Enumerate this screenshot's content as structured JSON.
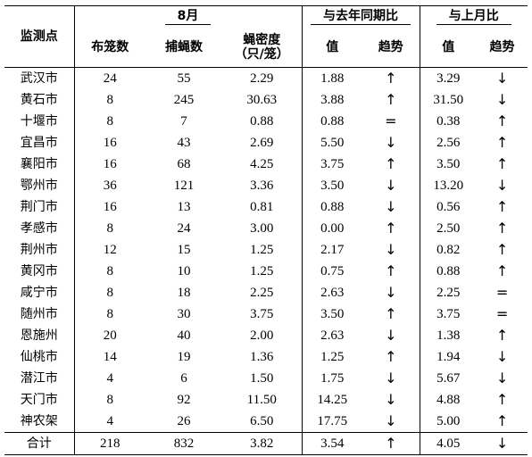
{
  "headers": {
    "site": "监测点",
    "month_group": "8月",
    "yoy_group": "与去年同期比",
    "mom_group": "与上月比",
    "cages": "布笼数",
    "flies": "捕蝇数",
    "density_l1": "蝇密度",
    "density_l2": "（只/笼）",
    "yoy_value": "值",
    "yoy_trend": "趋势",
    "mom_value": "值",
    "mom_trend": "趋势"
  },
  "rows": [
    {
      "city": "武汉市",
      "cages": "24",
      "flies": "55",
      "density": "2.29",
      "yoy": "1.88",
      "yoy_trend": "↑",
      "mom": "3.29",
      "mom_trend": "↓"
    },
    {
      "city": "黄石市",
      "cages": "8",
      "flies": "245",
      "density": "30.63",
      "yoy": "3.88",
      "yoy_trend": "↑",
      "mom": "31.50",
      "mom_trend": "↓"
    },
    {
      "city": "十堰市",
      "cages": "8",
      "flies": "7",
      "density": "0.88",
      "yoy": "0.88",
      "yoy_trend": "=",
      "mom": "0.38",
      "mom_trend": "↑"
    },
    {
      "city": "宜昌市",
      "cages": "16",
      "flies": "43",
      "density": "2.69",
      "yoy": "5.50",
      "yoy_trend": "↓",
      "mom": "2.56",
      "mom_trend": "↑"
    },
    {
      "city": "襄阳市",
      "cages": "16",
      "flies": "68",
      "density": "4.25",
      "yoy": "3.75",
      "yoy_trend": "↑",
      "mom": "3.50",
      "mom_trend": "↑"
    },
    {
      "city": "鄂州市",
      "cages": "36",
      "flies": "121",
      "density": "3.36",
      "yoy": "3.50",
      "yoy_trend": "↓",
      "mom": "13.20",
      "mom_trend": "↓"
    },
    {
      "city": "荆门市",
      "cages": "16",
      "flies": "13",
      "density": "0.81",
      "yoy": "0.88",
      "yoy_trend": "↓",
      "mom": "0.56",
      "mom_trend": "↑"
    },
    {
      "city": "孝感市",
      "cages": "8",
      "flies": "24",
      "density": "3.00",
      "yoy": "0.00",
      "yoy_trend": "↑",
      "mom": "2.50",
      "mom_trend": "↑"
    },
    {
      "city": "荆州市",
      "cages": "12",
      "flies": "15",
      "density": "1.25",
      "yoy": "2.17",
      "yoy_trend": "↓",
      "mom": "0.82",
      "mom_trend": "↑"
    },
    {
      "city": "黄冈市",
      "cages": "8",
      "flies": "10",
      "density": "1.25",
      "yoy": "0.75",
      "yoy_trend": "↑",
      "mom": "0.88",
      "mom_trend": "↑"
    },
    {
      "city": "咸宁市",
      "cages": "8",
      "flies": "18",
      "density": "2.25",
      "yoy": "2.63",
      "yoy_trend": "↓",
      "mom": "2.25",
      "mom_trend": "="
    },
    {
      "city": "随州市",
      "cages": "8",
      "flies": "30",
      "density": "3.75",
      "yoy": "3.50",
      "yoy_trend": "↑",
      "mom": "3.75",
      "mom_trend": "="
    },
    {
      "city": "恩施州",
      "cages": "20",
      "flies": "40",
      "density": "2.00",
      "yoy": "2.63",
      "yoy_trend": "↓",
      "mom": "1.38",
      "mom_trend": "↑"
    },
    {
      "city": "仙桃市",
      "cages": "14",
      "flies": "19",
      "density": "1.36",
      "yoy": "1.25",
      "yoy_trend": "↑",
      "mom": "1.94",
      "mom_trend": "↓"
    },
    {
      "city": "潜江市",
      "cages": "4",
      "flies": "6",
      "density": "1.50",
      "yoy": "1.75",
      "yoy_trend": "↓",
      "mom": "5.67",
      "mom_trend": "↓"
    },
    {
      "city": "天门市",
      "cages": "8",
      "flies": "92",
      "density": "11.50",
      "yoy": "14.25",
      "yoy_trend": "↓",
      "mom": "4.88",
      "mom_trend": "↑"
    },
    {
      "city": "神农架",
      "cages": "4",
      "flies": "26",
      "density": "6.50",
      "yoy": "17.75",
      "yoy_trend": "↓",
      "mom": "5.00",
      "mom_trend": "↑"
    }
  ],
  "total": {
    "label": "合计",
    "cages": "218",
    "flies": "832",
    "density": "3.82",
    "yoy": "3.54",
    "yoy_trend": "↑",
    "mom": "4.05",
    "mom_trend": "↓"
  }
}
